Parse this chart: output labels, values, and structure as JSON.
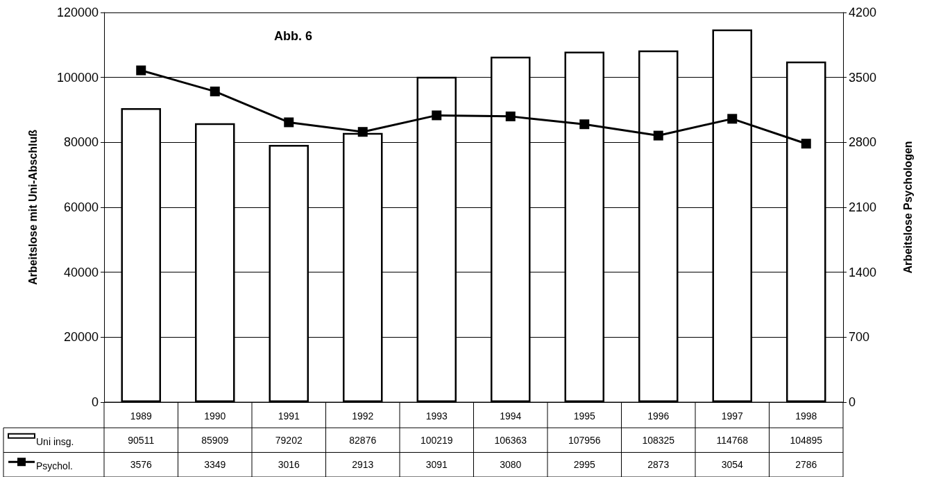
{
  "chart_data": {
    "type": "bar",
    "title": "Abb. 6",
    "ylabel": "Arbeitslose mit Uni-Abschluß",
    "y2label": "Arbeitslose Psychologen",
    "categories": [
      "1989",
      "1990",
      "1991",
      "1992",
      "1993",
      "1994",
      "1995",
      "1996",
      "1997",
      "1998"
    ],
    "series": [
      {
        "name": "Uni insg.",
        "color": "#ffffff",
        "values": [
          90511,
          85909,
          79202,
          82876,
          100219,
          106363,
          107956,
          108325,
          114768,
          104895
        ]
      },
      {
        "name": "Psychol.",
        "type": "line",
        "axis": "y2",
        "color": "#000000",
        "values": [
          3576,
          3349,
          3016,
          2913,
          3091,
          3080,
          2995,
          2873,
          3054,
          2786
        ]
      }
    ],
    "ylim": [
      0,
      120000
    ],
    "yticks": [
      0,
      20000,
      40000,
      60000,
      80000,
      100000,
      120000
    ],
    "y2lim": [
      0,
      4200
    ],
    "y2ticks": [
      0,
      700,
      1400,
      2100,
      2800,
      3500,
      4200
    ],
    "grid": "y",
    "marker": "square",
    "legend": "bottom",
    "data_labels": true
  }
}
